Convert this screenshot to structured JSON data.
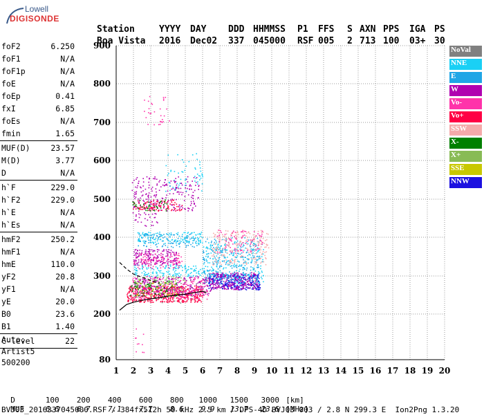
{
  "logo": {
    "line1": "Lowell",
    "line2": "DIGISONDE"
  },
  "header": {
    "row1": [
      "Station",
      "YYYY",
      "DAY",
      "DDD",
      "HHMMSS",
      "P1",
      "FFS",
      "S",
      "AXN",
      "PPS",
      "IGA",
      "PS"
    ],
    "row2": [
      "Boa Vista",
      "2016",
      "Dec02",
      "337",
      "045000",
      "RSF",
      "005",
      "2",
      "713",
      "100",
      "03+",
      "30"
    ]
  },
  "params": [
    {
      "label": "foF2",
      "value": "6.250"
    },
    {
      "label": "foF1",
      "value": "N/A"
    },
    {
      "label": "foF1p",
      "value": "N/A"
    },
    {
      "label": "foE",
      "value": "N/A"
    },
    {
      "label": "foEp",
      "value": "0.41"
    },
    {
      "label": "fxI",
      "value": "6.85"
    },
    {
      "label": "foEs",
      "value": "N/A"
    },
    {
      "label": "fmin",
      "value": "1.65"
    },
    {
      "sep": true
    },
    {
      "label": "MUF(D)",
      "value": "23.57"
    },
    {
      "label": "M(D)",
      "value": "3.77"
    },
    {
      "label": "D",
      "value": "N/A"
    },
    {
      "sep": true
    },
    {
      "label": "h`F",
      "value": "229.0"
    },
    {
      "label": "h`F2",
      "value": "229.0"
    },
    {
      "label": "h`E",
      "value": "N/A"
    },
    {
      "label": "h`Es",
      "value": "N/A"
    },
    {
      "sep": true
    },
    {
      "label": "hmF2",
      "value": "250.2"
    },
    {
      "label": "hmF1",
      "value": "N/A"
    },
    {
      "label": "hmE",
      "value": "110.0"
    },
    {
      "label": "yF2",
      "value": "20.8"
    },
    {
      "label": "yF1",
      "value": "N/A"
    },
    {
      "label": "yE",
      "value": "20.0"
    },
    {
      "label": "B0",
      "value": "23.6"
    },
    {
      "label": "B1",
      "value": "1.40"
    },
    {
      "sep": true
    },
    {
      "label": "C-level",
      "value": "22"
    },
    {
      "sep": true
    }
  ],
  "auto": {
    "line1": "Auto:",
    "line2": "Artist5",
    "line3": "500200"
  },
  "legend": [
    {
      "label": "NoVal",
      "color": "#808080"
    },
    {
      "label": "NNE",
      "color": "#1ad0f5"
    },
    {
      "label": "E",
      "color": "#1fa6e6"
    },
    {
      "label": "W",
      "color": "#b000b0"
    },
    {
      "label": "Vo-",
      "color": "#ff33aa"
    },
    {
      "label": "Vo+",
      "color": "#ff0044"
    },
    {
      "label": "SSW",
      "color": "#f5aaaa"
    },
    {
      "label": "X-",
      "color": "#008000"
    },
    {
      "label": "X+",
      "color": "#88bb55"
    },
    {
      "label": "SSE",
      "color": "#c8c800"
    },
    {
      "label": "NNW",
      "color": "#1c10e0"
    }
  ],
  "footer": {
    "d_label": "D",
    "d_values": [
      "100",
      "200",
      "400",
      "600",
      "800",
      "1000",
      "1500",
      "3000",
      "[km]"
    ],
    "muf_label": "MUF",
    "muf_values": [
      "6.6",
      "6.7",
      "7.1",
      "7.7",
      "8.6",
      "9.9",
      "13.7",
      "23.6",
      "[MHz]"
    ],
    "info": "BVJ03_2016337045000.RSF / 384fx512h 50 kHz 2.5 km / DPS-4D BVJ03 003 / 2.8 N 299.3 E  Ion2Png 1.3.20"
  },
  "chart_data": {
    "type": "scatter",
    "xlim": [
      1,
      20
    ],
    "ylim": [
      80,
      900
    ],
    "x_ticks": [
      1,
      2,
      3,
      4,
      5,
      6,
      7,
      8,
      9,
      10,
      11,
      12,
      13,
      14,
      15,
      16,
      17,
      18,
      19,
      20
    ],
    "y_ticks": [
      80,
      200,
      300,
      400,
      500,
      600,
      700,
      800,
      900
    ],
    "grid": true,
    "profile_curve": [
      [
        1.2,
        210
      ],
      [
        1.6,
        225
      ],
      [
        2.0,
        231
      ],
      [
        2.5,
        236
      ],
      [
        3.0,
        240
      ],
      [
        3.5,
        243
      ],
      [
        4.0,
        247
      ],
      [
        4.5,
        250
      ],
      [
        5.0,
        252
      ],
      [
        5.5,
        256
      ],
      [
        6.0,
        260
      ],
      [
        6.2,
        256
      ]
    ],
    "trace_curve": [
      [
        1.2,
        335
      ],
      [
        1.6,
        318
      ],
      [
        2.0,
        305
      ],
      [
        2.4,
        298
      ],
      [
        2.8,
        292
      ],
      [
        3.2,
        285
      ],
      [
        3.5,
        280
      ]
    ],
    "clusters": [
      {
        "series": "NoVal",
        "x": [
          1.7,
          6.2
        ],
        "y": [
          230,
          290
        ],
        "n": 60
      },
      {
        "series": "Vo+",
        "x": [
          1.6,
          6.0
        ],
        "y": [
          232,
          275
        ],
        "n": 450
      },
      {
        "series": "Vo-",
        "x": [
          1.8,
          6.3
        ],
        "y": [
          240,
          300
        ],
        "n": 260
      },
      {
        "series": "W",
        "x": [
          2.0,
          6.5
        ],
        "y": [
          250,
          300
        ],
        "n": 200
      },
      {
        "series": "X-",
        "x": [
          1.8,
          4.5
        ],
        "y": [
          245,
          290
        ],
        "n": 80
      },
      {
        "series": "X+",
        "x": [
          2.0,
          5.0
        ],
        "y": [
          245,
          300
        ],
        "n": 70
      },
      {
        "series": "SSE",
        "x": [
          2.0,
          4.5
        ],
        "y": [
          250,
          290
        ],
        "n": 40
      },
      {
        "series": "NNW",
        "x": [
          6.3,
          9.3
        ],
        "y": [
          265,
          305
        ],
        "n": 300
      },
      {
        "series": "W",
        "x": [
          6.3,
          9.2
        ],
        "y": [
          265,
          310
        ],
        "n": 250
      },
      {
        "series": "NNE",
        "x": [
          6.0,
          9.5
        ],
        "y": [
          280,
          390
        ],
        "n": 260
      },
      {
        "series": "E",
        "x": [
          6.0,
          9.3
        ],
        "y": [
          290,
          400
        ],
        "n": 200
      },
      {
        "series": "SSW",
        "x": [
          6.5,
          9.8
        ],
        "y": [
          330,
          420
        ],
        "n": 220
      },
      {
        "series": "Vo-",
        "x": [
          6.8,
          9.5
        ],
        "y": [
          360,
          420
        ],
        "n": 80
      },
      {
        "series": "NNE",
        "x": [
          2.0,
          6.0
        ],
        "y": [
          300,
          330
        ],
        "n": 150
      },
      {
        "series": "W",
        "x": [
          2.0,
          4.5
        ],
        "y": [
          330,
          370
        ],
        "n": 180
      },
      {
        "series": "Vo-",
        "x": [
          2.0,
          4.8
        ],
        "y": [
          320,
          360
        ],
        "n": 110
      },
      {
        "series": "NNE",
        "x": [
          2.2,
          6.0
        ],
        "y": [
          385,
          415
        ],
        "n": 140
      },
      {
        "series": "E",
        "x": [
          2.2,
          5.8
        ],
        "y": [
          375,
          410
        ],
        "n": 100
      },
      {
        "series": "W",
        "x": [
          1.9,
          5.8
        ],
        "y": [
          470,
          560
        ],
        "n": 230
      },
      {
        "series": "Vo+",
        "x": [
          1.9,
          4.8
        ],
        "y": [
          470,
          500
        ],
        "n": 100
      },
      {
        "series": "X-",
        "x": [
          1.9,
          4.0
        ],
        "y": [
          470,
          500
        ],
        "n": 40
      },
      {
        "series": "NNE",
        "x": [
          3.8,
          6.0
        ],
        "y": [
          520,
          620
        ],
        "n": 60
      },
      {
        "series": "Vo-",
        "x": [
          2.6,
          4.2
        ],
        "y": [
          690,
          770
        ],
        "n": 30
      },
      {
        "series": "W",
        "x": [
          1.8,
          3.4
        ],
        "y": [
          430,
          470
        ],
        "n": 30
      },
      {
        "series": "Vo-",
        "x": [
          2.0,
          2.6
        ],
        "y": [
          80,
          180
        ],
        "n": 10
      }
    ]
  }
}
